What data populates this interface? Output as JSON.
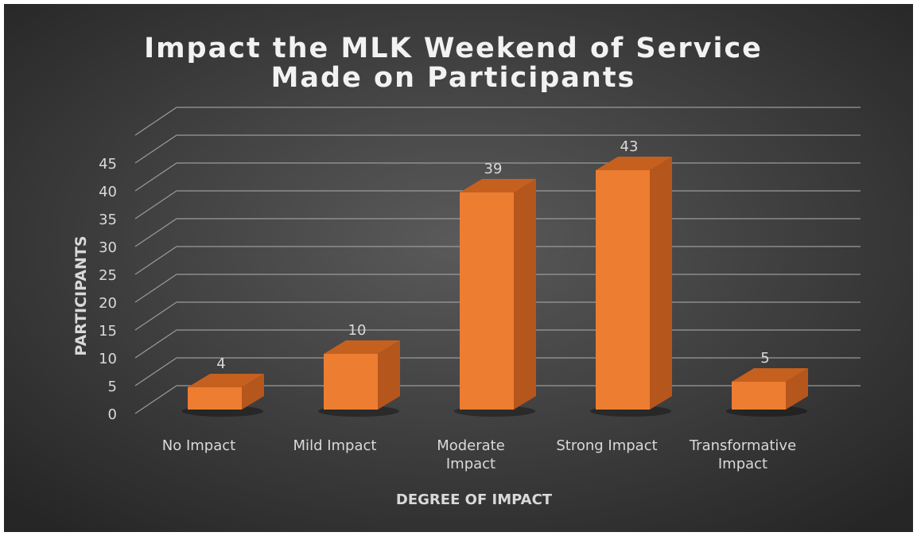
{
  "chart_data": {
    "type": "bar3d",
    "title": "Impact the MLK Weekend of Service Made on Participants",
    "xlabel": "DEGREE OF IMPACT",
    "ylabel": "PARTICIPANTS",
    "categories": [
      "No Impact",
      "Mild Impact",
      "Moderate Impact",
      "Strong Impact",
      "Transformative Impact"
    ],
    "values": [
      4,
      10,
      39,
      43,
      5
    ],
    "color": "#ed7d31",
    "ylim": [
      0,
      50
    ],
    "yticks": [
      0,
      5,
      10,
      15,
      20,
      25,
      30,
      35,
      40,
      45
    ],
    "grid": true
  }
}
